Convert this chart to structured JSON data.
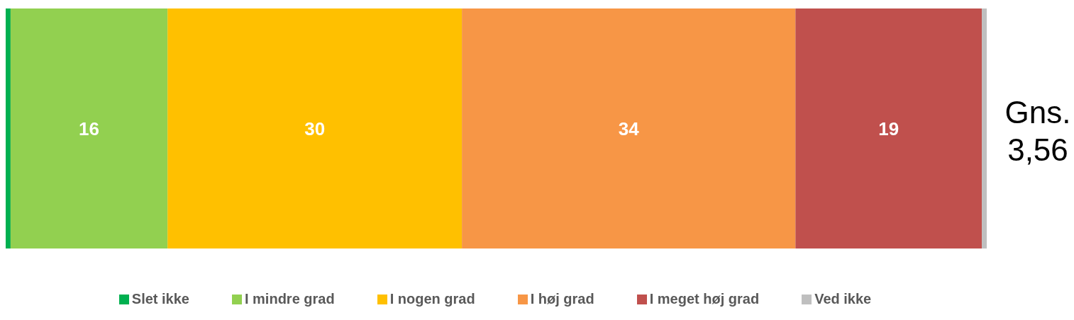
{
  "chart_data": {
    "type": "bar",
    "orientation": "horizontal",
    "stacked": true,
    "categories": [
      null
    ],
    "series": [
      {
        "name": "Slet ikke",
        "color": "#00b050",
        "values": [
          0.5
        ],
        "value_labels": [
          null
        ]
      },
      {
        "name": "I mindre grad",
        "color": "#92d050",
        "values": [
          16
        ],
        "value_labels": [
          "16"
        ]
      },
      {
        "name": "I nogen grad",
        "color": "#ffc000",
        "values": [
          30
        ],
        "value_labels": [
          "30"
        ]
      },
      {
        "name": "I høj grad",
        "color": "#f79646",
        "values": [
          34
        ],
        "value_labels": [
          "34"
        ]
      },
      {
        "name": "I meget høj grad",
        "color": "#c0504d",
        "values": [
          19
        ],
        "value_labels": [
          "19"
        ]
      },
      {
        "name": "Ved ikke",
        "color": "#bfbfbf",
        "values": [
          0.5
        ],
        "value_labels": [
          null
        ]
      }
    ],
    "annotations": [
      "Gns. 3,56"
    ],
    "legend": "bottom",
    "grid": false
  }
}
